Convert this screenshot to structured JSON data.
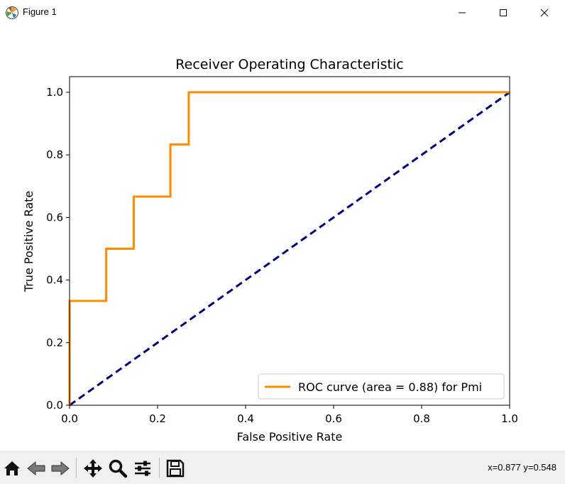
{
  "window": {
    "title": "Figure 1"
  },
  "chart_data": {
    "type": "line",
    "title": "Receiver Operating Characteristic",
    "xlabel": "False Positive Rate",
    "ylabel": "True Positive Rate",
    "xlim": [
      0.0,
      1.0
    ],
    "ylim": [
      0.0,
      1.05
    ],
    "xticks": [
      0.0,
      0.2,
      0.4,
      0.6,
      0.8,
      1.0
    ],
    "yticks": [
      0.0,
      0.2,
      0.4,
      0.6,
      0.8,
      1.0
    ],
    "xtick_labels": [
      "0.0",
      "0.2",
      "0.4",
      "0.6",
      "0.8",
      "1.0"
    ],
    "ytick_labels": [
      "0.0",
      "0.2",
      "0.4",
      "0.6",
      "0.8",
      "1.0"
    ],
    "grid": false,
    "legend_position": "lower-right",
    "series": [
      {
        "name": "ROC curve (area = 0.88) for Pmi",
        "color": "#ff8c00",
        "style": "solid",
        "x": [
          0.0,
          0.0,
          0.0833,
          0.0833,
          0.1458,
          0.1458,
          0.2292,
          0.2292,
          0.2708,
          0.2708,
          1.0
        ],
        "y": [
          0.0,
          0.3333,
          0.3333,
          0.5,
          0.5,
          0.6667,
          0.6667,
          0.8333,
          0.8333,
          1.0,
          1.0
        ]
      },
      {
        "name": "",
        "color": "#000080",
        "style": "dashed",
        "x": [
          0.0,
          1.0
        ],
        "y": [
          0.0,
          1.0
        ]
      }
    ]
  },
  "toolbar": {
    "coords": "x=0.877 y=0.548",
    "icons": [
      "home-icon",
      "back-icon",
      "forward-icon",
      "pan-icon",
      "zoom-icon",
      "configure-icon",
      "save-icon"
    ]
  }
}
